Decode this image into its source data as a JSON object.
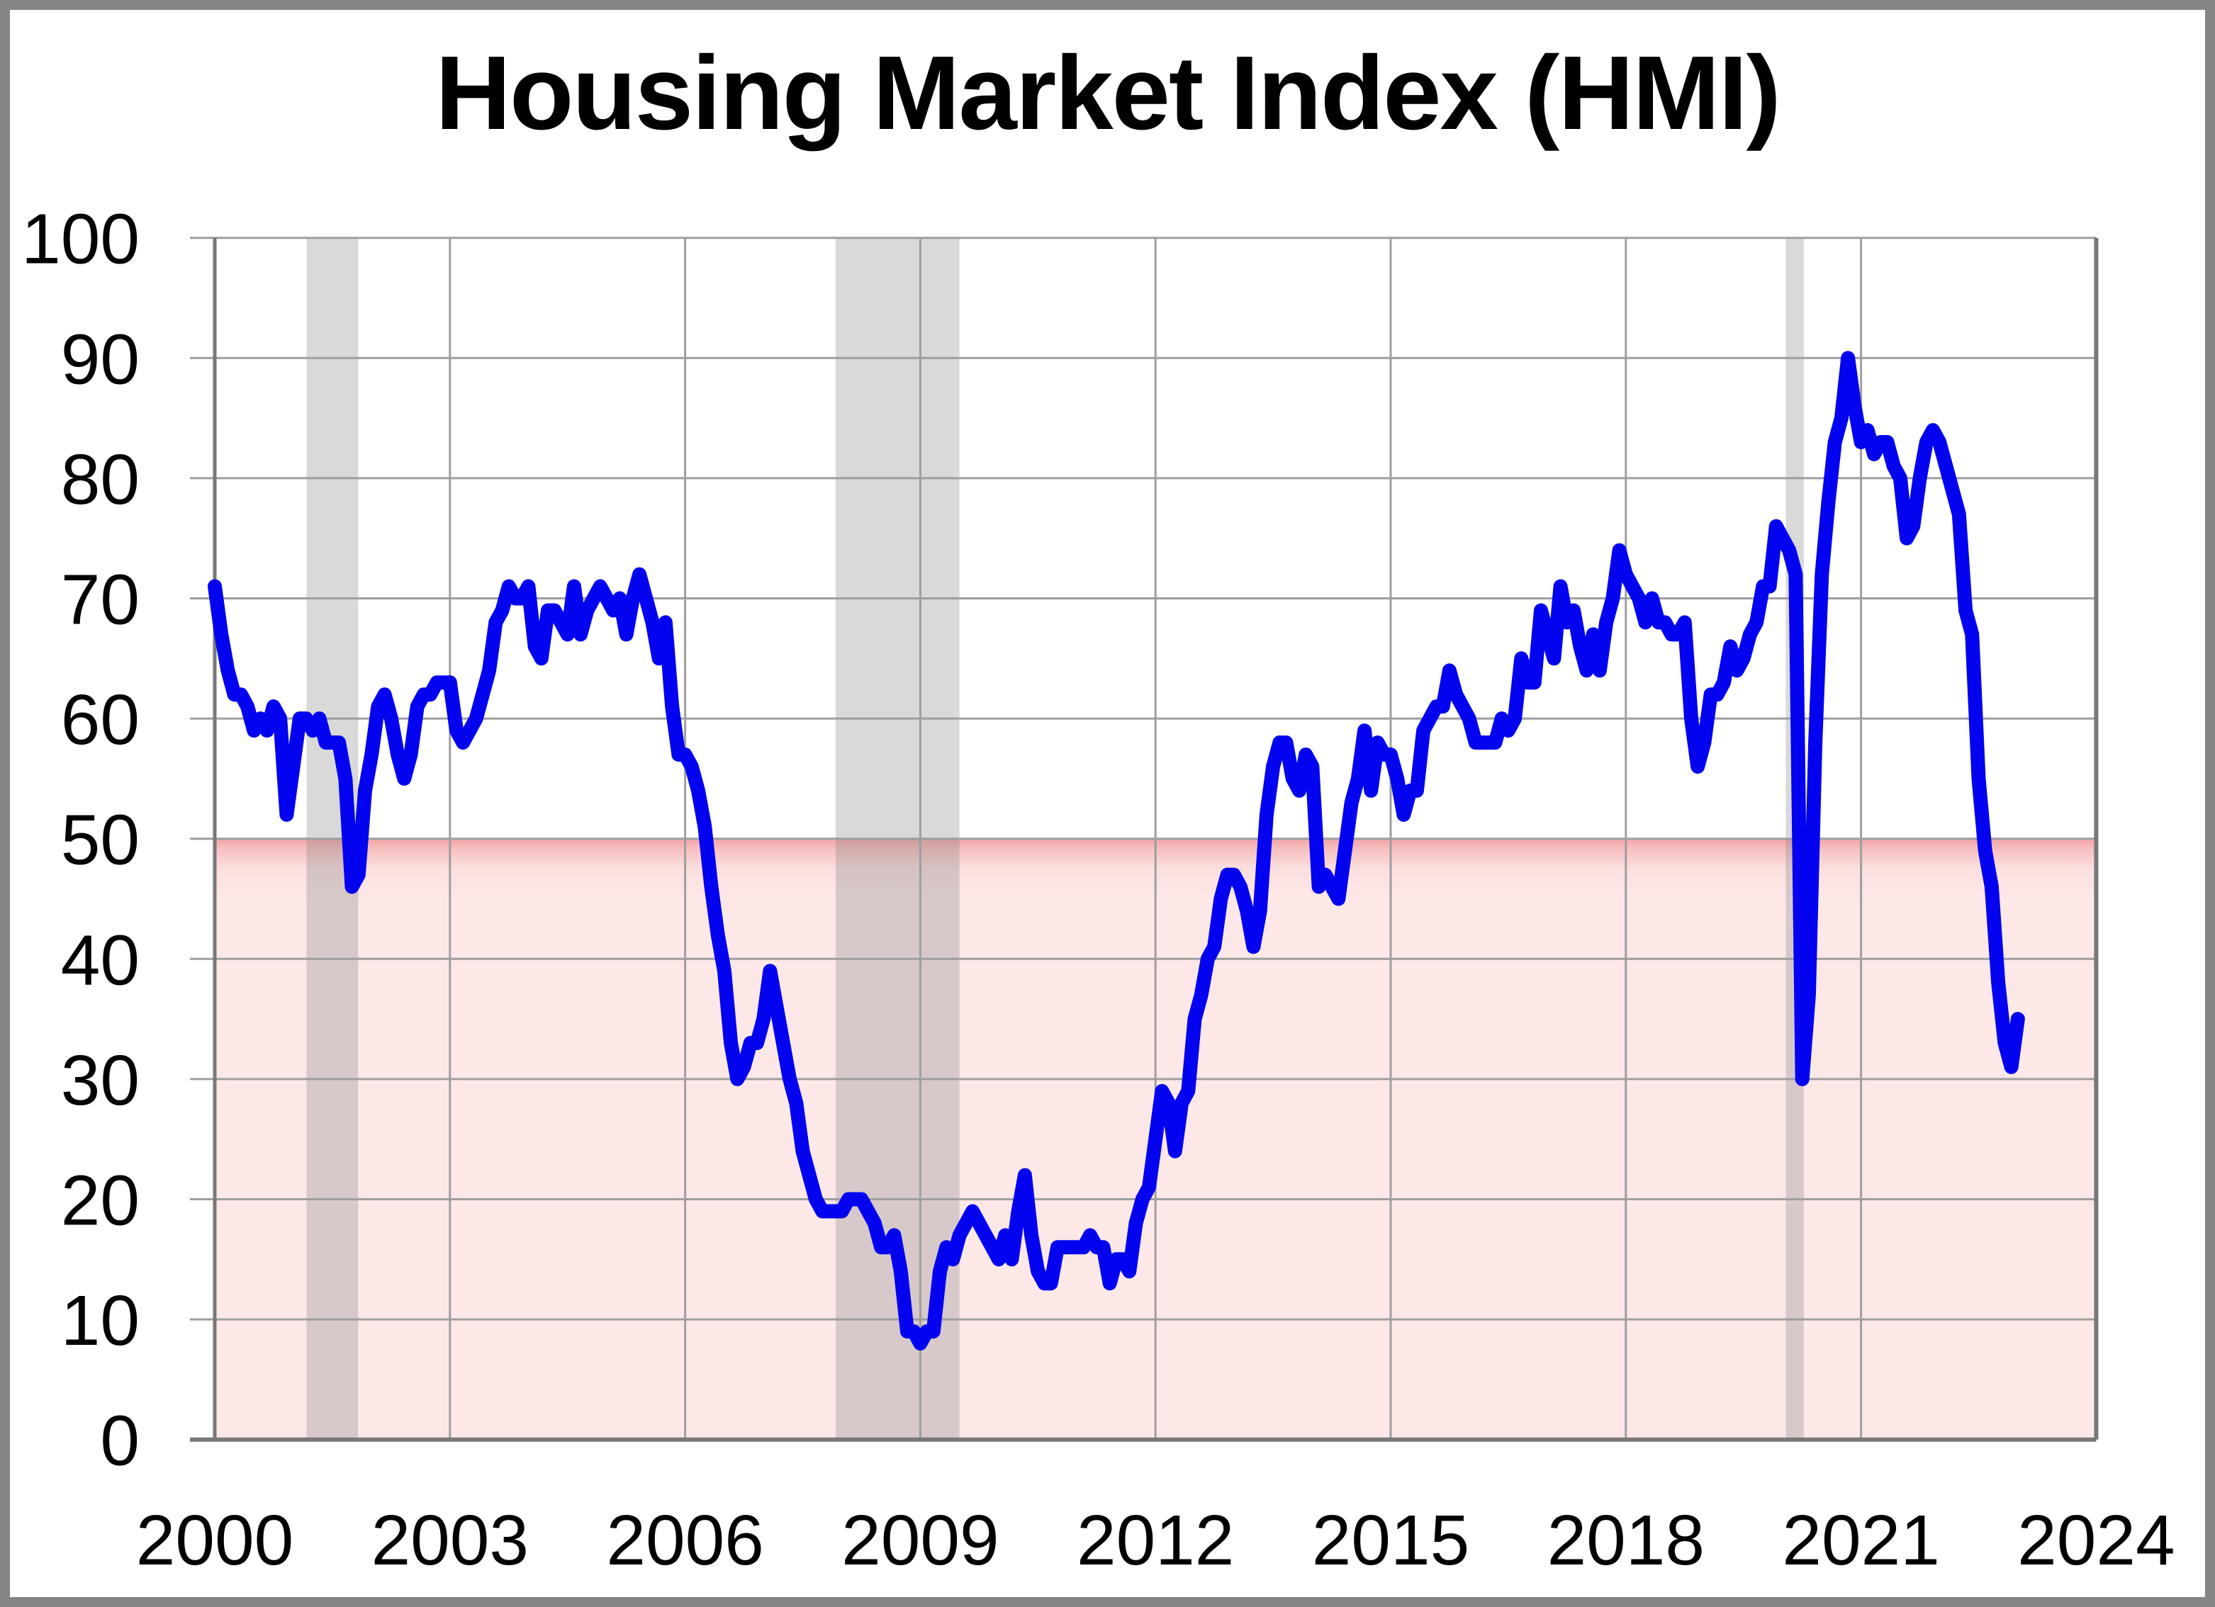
{
  "title": "Housing Market Index (HMI)",
  "chart_data": {
    "type": "line",
    "title": "Housing Market Index (HMI)",
    "series_name": "HMI",
    "frequency": "monthly",
    "x_start_year": 2000,
    "x_start_month": 1,
    "x_end_year": 2023,
    "x_end_month": 1,
    "xlim": [
      2000,
      2024
    ],
    "ylim": [
      0,
      100
    ],
    "x_tick_years": [
      2000,
      2003,
      2006,
      2009,
      2012,
      2015,
      2018,
      2021,
      2024
    ],
    "y_ticks": [
      0,
      10,
      20,
      30,
      40,
      50,
      60,
      70,
      80,
      90,
      100
    ],
    "grid": true,
    "legend": false,
    "threshold_region": {
      "name": "below-50-contraction-zone",
      "from": 0,
      "to": 50
    },
    "recession_bands": [
      {
        "name": "recession-2001",
        "start": 2001.17,
        "end": 2001.83
      },
      {
        "name": "recession-2008",
        "start": 2007.92,
        "end": 2009.5
      },
      {
        "name": "recession-2020",
        "start": 2020.04,
        "end": 2020.27
      }
    ],
    "values": [
      71,
      67,
      64,
      62,
      62,
      61,
      59,
      60,
      59,
      61,
      60,
      52,
      56,
      60,
      60,
      59,
      60,
      58,
      58,
      58,
      55,
      46,
      47,
      54,
      57,
      61,
      62,
      60,
      57,
      55,
      57,
      61,
      62,
      62,
      63,
      63,
      63,
      59,
      58,
      59,
      60,
      62,
      64,
      68,
      69,
      71,
      70,
      70,
      71,
      66,
      65,
      69,
      69,
      68,
      67,
      71,
      67,
      69,
      70,
      71,
      70,
      69,
      70,
      67,
      70,
      72,
      70,
      68,
      65,
      68,
      61,
      57,
      57,
      56,
      54,
      51,
      46,
      42,
      39,
      33,
      30,
      31,
      33,
      33,
      35,
      39,
      36,
      33,
      30,
      28,
      24,
      22,
      20,
      19,
      19,
      19,
      19,
      20,
      20,
      20,
      19,
      18,
      16,
      16,
      17,
      14,
      9,
      9,
      8,
      9,
      9,
      14,
      16,
      15,
      17,
      18,
      19,
      18,
      17,
      16,
      15,
      17,
      15,
      19,
      22,
      17,
      14,
      13,
      13,
      16,
      16,
      16,
      16,
      16,
      17,
      16,
      16,
      13,
      15,
      15,
      14,
      18,
      20,
      21,
      25,
      29,
      28,
      24,
      28,
      29,
      35,
      37,
      40,
      41,
      45,
      47,
      47,
      46,
      44,
      41,
      44,
      52,
      56,
      58,
      58,
      55,
      54,
      57,
      56,
      46,
      47,
      46,
      45,
      49,
      53,
      55,
      59,
      54,
      58,
      57,
      57,
      55,
      52,
      54,
      54,
      59,
      60,
      61,
      61,
      64,
      62,
      61,
      60,
      58,
      58,
      58,
      58,
      60,
      59,
      60,
      65,
      63,
      63,
      69,
      67,
      65,
      71,
      68,
      69,
      66,
      64,
      67,
      64,
      68,
      70,
      74,
      72,
      71,
      70,
      68,
      70,
      68,
      68,
      67,
      67,
      68,
      60,
      56,
      58,
      62,
      62,
      63,
      66,
      64,
      65,
      67,
      68,
      71,
      71,
      76,
      75,
      74,
      72,
      30,
      37,
      58,
      72,
      78,
      83,
      85,
      90,
      86,
      83,
      84,
      82,
      83,
      83,
      81,
      80,
      75,
      76,
      80,
      83,
      84,
      83,
      81,
      79,
      77,
      69,
      67,
      55,
      49,
      46,
      38,
      33,
      31,
      35
    ],
    "colors": {
      "line": "#0303ef",
      "below_band_edge": "#f4a4a6",
      "below_band_fill": "#fde8e8",
      "recession_fill": "#808080",
      "recession_opacity": "0.30",
      "gridline": "#9e9e9e",
      "axis_dark": "#787878",
      "frame": "#858585",
      "text": "#000000",
      "background": "#ffffff"
    }
  }
}
